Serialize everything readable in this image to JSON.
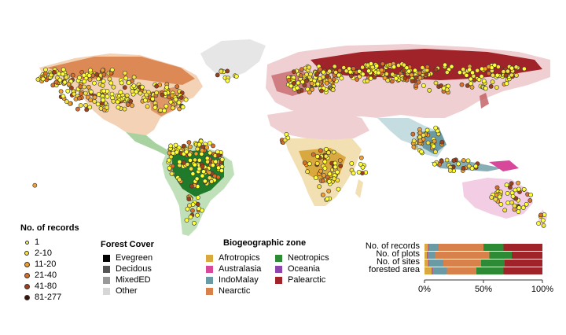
{
  "records_legend": {
    "title": "No. of records",
    "items": [
      {
        "label": "1",
        "color": "#ffff33"
      },
      {
        "label": "2-10",
        "color": "#f7e23a"
      },
      {
        "label": "11-20",
        "color": "#f0a030"
      },
      {
        "label": "21-40",
        "color": "#d86f2a"
      },
      {
        "label": "41-80",
        "color": "#a0401a"
      },
      {
        "label": "81-277",
        "color": "#3a1208"
      }
    ]
  },
  "forest_cover_legend": {
    "title": "Forest Cover",
    "items": [
      {
        "label": "Evegreen",
        "color": "#000000"
      },
      {
        "label": "Decidous",
        "color": "#555555"
      },
      {
        "label": "MixedED",
        "color": "#999999"
      },
      {
        "label": "Other",
        "color": "#d6d6d6"
      }
    ]
  },
  "zone_legend": {
    "title": "Biogeographic zone",
    "items": [
      {
        "label": "Afrotropics",
        "color": "#d9a93f"
      },
      {
        "label": "Neotropics",
        "color": "#2e8b35"
      },
      {
        "label": "Australasia",
        "color": "#d7479a"
      },
      {
        "label": "Oceania",
        "color": "#8e44ad"
      },
      {
        "label": "IndoMalay",
        "color": "#6a9aa3"
      },
      {
        "label": "Palearctic",
        "color": "#a0232a"
      },
      {
        "label": "Nearctic",
        "color": "#d9814a"
      }
    ]
  },
  "chart_data": {
    "type": "bar",
    "orientation": "horizontal",
    "stacked": true,
    "categories": [
      "No. of records",
      "No. of plots",
      "No. of sites",
      "forested area"
    ],
    "series": [
      {
        "name": "Afrotropics",
        "color": "#d9a93f",
        "values": [
          3,
          2,
          3,
          6
        ]
      },
      {
        "name": "Australasia",
        "color": "#d7479a",
        "values": [
          1,
          1,
          1,
          1
        ]
      },
      {
        "name": "IndoMalay",
        "color": "#6a9aa3",
        "values": [
          8,
          6,
          12,
          12
        ]
      },
      {
        "name": "Nearctic",
        "color": "#d9814a",
        "values": [
          38,
          46,
          32,
          25
        ]
      },
      {
        "name": "Neotropics",
        "color": "#2e8b35",
        "values": [
          17,
          19,
          20,
          23
        ]
      },
      {
        "name": "Oceania",
        "color": "#8e44ad",
        "values": [
          0,
          0,
          0,
          0
        ]
      },
      {
        "name": "Palearctic",
        "color": "#a0232a",
        "values": [
          33,
          26,
          32,
          33
        ]
      }
    ],
    "xlim": [
      0,
      100
    ],
    "xticks": [
      "0%",
      "50%",
      "100%"
    ]
  }
}
